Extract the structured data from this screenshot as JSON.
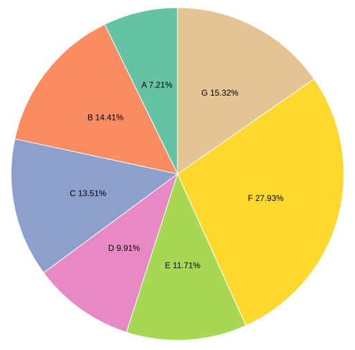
{
  "chart_data": {
    "type": "pie",
    "title": "",
    "start": "top",
    "direction": "counterclockwise",
    "slices": [
      {
        "label": "A",
        "value": 7.21,
        "text": "A 7.21%",
        "color": "#66c2a5"
      },
      {
        "label": "B",
        "value": 14.41,
        "text": "B 14.41%",
        "color": "#fc8d62"
      },
      {
        "label": "C",
        "value": 13.51,
        "text": "C 13.51%",
        "color": "#8da0cb"
      },
      {
        "label": "D",
        "value": 9.91,
        "text": "D 9.91%",
        "color": "#e78ac3"
      },
      {
        "label": "E",
        "value": 11.71,
        "text": "E 11.71%",
        "color": "#a6d854"
      },
      {
        "label": "F",
        "value": 27.93,
        "text": "F 27.93%",
        "color": "#ffd92f"
      },
      {
        "label": "G",
        "value": 15.32,
        "text": "G 15.32%",
        "color": "#e5c494"
      }
    ]
  }
}
